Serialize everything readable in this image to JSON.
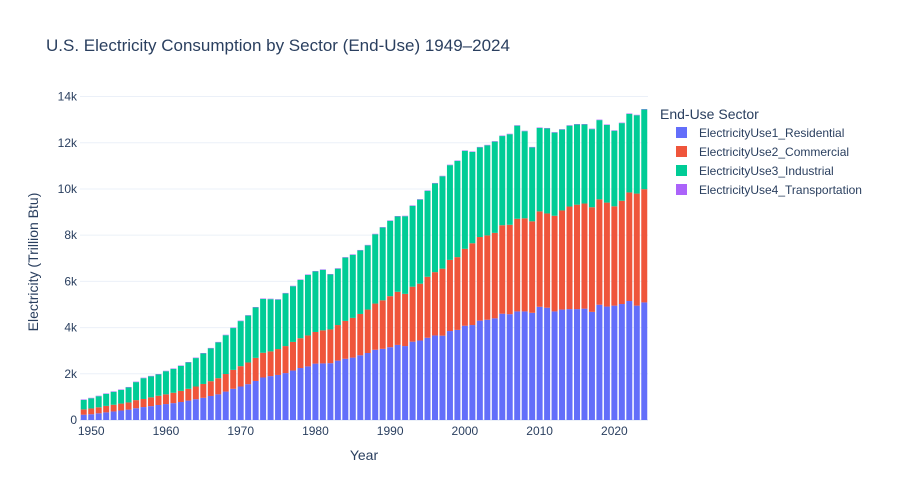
{
  "chart_data": {
    "type": "bar",
    "barmode": "stack",
    "title": "U.S. Electricity Consumption by Sector (End-Use) 1949–2024",
    "xlabel": "Year",
    "ylabel": "Electricity (Trillion Btu)",
    "xlim": [
      1948.5,
      2024.5
    ],
    "ylim": [
      0,
      14500
    ],
    "x_ticks": [
      1950,
      1960,
      1970,
      1980,
      1990,
      2000,
      2010,
      2020
    ],
    "y_ticks": [
      0,
      2000,
      4000,
      6000,
      8000,
      10000,
      12000,
      14000
    ],
    "y_tick_labels": [
      "0",
      "2k",
      "4k",
      "6k",
      "8k",
      "10k",
      "12k",
      "14k"
    ],
    "grid": true,
    "legend_title": "End-Use Sector",
    "legend_position": "right",
    "x": [
      1949,
      1950,
      1951,
      1952,
      1953,
      1954,
      1955,
      1956,
      1957,
      1958,
      1959,
      1960,
      1961,
      1962,
      1963,
      1964,
      1965,
      1966,
      1967,
      1968,
      1969,
      1970,
      1971,
      1972,
      1973,
      1974,
      1975,
      1976,
      1977,
      1978,
      1979,
      1980,
      1981,
      1982,
      1983,
      1984,
      1985,
      1986,
      1987,
      1988,
      1989,
      1990,
      1991,
      1992,
      1993,
      1994,
      1995,
      1996,
      1997,
      1998,
      1999,
      2000,
      2001,
      2002,
      2003,
      2004,
      2005,
      2006,
      2007,
      2008,
      2009,
      2010,
      2011,
      2012,
      2013,
      2014,
      2015,
      2016,
      2017,
      2018,
      2019,
      2020,
      2021,
      2022,
      2023,
      2024
    ],
    "series": [
      {
        "name": "ElectricityUse1_Residential",
        "color": "#636efa",
        "values": [
          230,
          250,
          290,
          330,
          370,
          410,
          450,
          510,
          560,
          600,
          650,
          690,
          730,
          780,
          840,
          900,
          960,
          1040,
          1110,
          1230,
          1350,
          1450,
          1550,
          1690,
          1840,
          1900,
          1950,
          2030,
          2140,
          2250,
          2320,
          2440,
          2450,
          2460,
          2570,
          2650,
          2700,
          2800,
          2900,
          3040,
          3080,
          3150,
          3250,
          3200,
          3390,
          3440,
          3560,
          3660,
          3650,
          3850,
          3900,
          4080,
          4110,
          4300,
          4340,
          4400,
          4600,
          4580,
          4700,
          4700,
          4640,
          4900,
          4860,
          4700,
          4780,
          4800,
          4800,
          4820,
          4680,
          4990,
          4910,
          4950,
          5020,
          5150,
          4950,
          5090
        ]
      },
      {
        "name": "ElectricityUse2_Commercial",
        "color": "#ef553b",
        "values": [
          230,
          250,
          260,
          280,
          290,
          300,
          310,
          350,
          350,
          380,
          400,
          420,
          450,
          480,
          510,
          550,
          600,
          640,
          700,
          760,
          820,
          880,
          940,
          1000,
          1070,
          1070,
          1120,
          1170,
          1240,
          1290,
          1340,
          1370,
          1430,
          1460,
          1540,
          1640,
          1720,
          1790,
          1880,
          2000,
          2100,
          2210,
          2300,
          2260,
          2380,
          2460,
          2640,
          2740,
          2900,
          3080,
          3150,
          3330,
          3540,
          3620,
          3650,
          3700,
          3830,
          3870,
          4010,
          4030,
          3960,
          4130,
          4080,
          4140,
          4290,
          4440,
          4520,
          4550,
          4530,
          4560,
          4500,
          4300,
          4470,
          4700,
          4850,
          4900
        ]
      },
      {
        "name": "ElectricityUse3_Industrial",
        "color": "#00cc96",
        "values": [
          410,
          440,
          480,
          520,
          560,
          590,
          650,
          780,
          900,
          910,
          920,
          1000,
          1030,
          1080,
          1140,
          1230,
          1320,
          1420,
          1550,
          1680,
          1810,
          1950,
          2030,
          2180,
          2330,
          2260,
          2140,
          2280,
          2410,
          2520,
          2620,
          2620,
          2620,
          2380,
          2440,
          2740,
          2730,
          2750,
          2780,
          3000,
          3150,
          3260,
          3260,
          3360,
          3500,
          3640,
          3720,
          3840,
          4000,
          4100,
          4160,
          4240,
          3950,
          3880,
          3900,
          3950,
          3860,
          3920,
          4030,
          3770,
          3200,
          3610,
          3680,
          3600,
          3500,
          3500,
          3470,
          3420,
          3380,
          3430,
          3360,
          3270,
          3360,
          3400,
          3390,
          3450
        ]
      },
      {
        "name": "ElectricityUse4_Transportation",
        "color": "#ab63fa",
        "values": [
          20,
          20,
          20,
          20,
          20,
          20,
          20,
          20,
          20,
          20,
          20,
          20,
          20,
          20,
          20,
          20,
          20,
          20,
          20,
          20,
          20,
          20,
          20,
          20,
          20,
          20,
          20,
          20,
          20,
          20,
          20,
          20,
          20,
          20,
          20,
          20,
          20,
          20,
          20,
          20,
          20,
          20,
          20,
          20,
          20,
          20,
          20,
          20,
          20,
          20,
          20,
          20,
          20,
          20,
          20,
          20,
          20,
          20,
          20,
          20,
          20,
          20,
          20,
          20,
          20,
          20,
          20,
          20,
          20,
          20,
          20,
          20,
          20,
          20,
          20,
          20
        ]
      }
    ]
  }
}
